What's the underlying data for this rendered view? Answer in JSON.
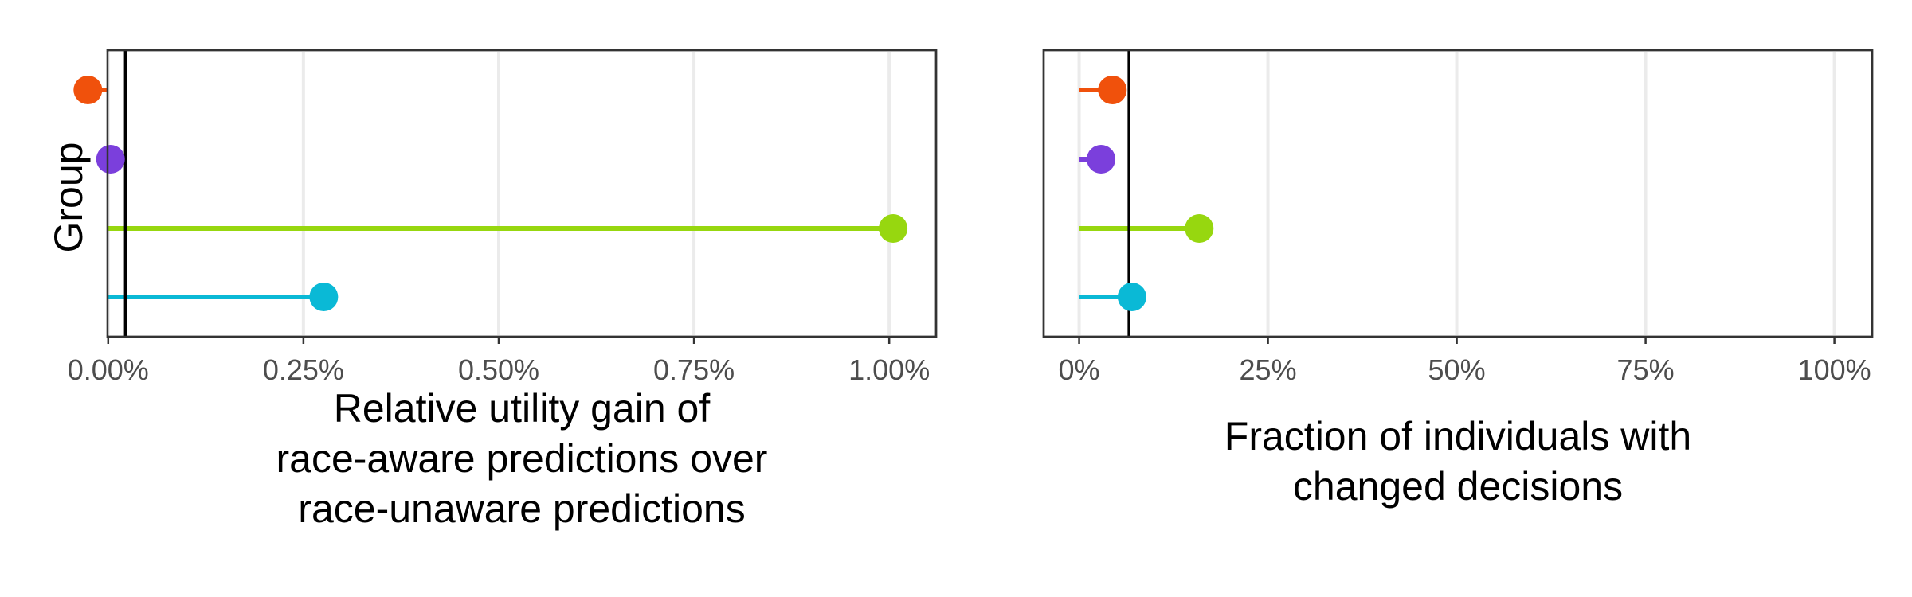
{
  "y_axis_label": "Group",
  "chart_data": [
    {
      "type": "lollipop",
      "xlabel": [
        "Relative utility gain of",
        "race-aware predictions over",
        "race-unaware predictions"
      ],
      "ylabel": "Group",
      "xlim": [
        -0.0008,
        1.06
      ],
      "xticks": [
        0,
        0.25,
        0.5,
        0.75,
        1.0
      ],
      "xtick_labels": [
        "0.00%",
        "0.25%",
        "0.50%",
        "0.75%",
        "1.00%"
      ],
      "reference_line": 0.022,
      "grid": "vertical",
      "series": [
        {
          "color": "#f0510c",
          "from": 0.0,
          "value": -0.026
        },
        {
          "color": "#7b3fdc",
          "from": 0.0,
          "value": 0.003
        },
        {
          "color": "#97d70f",
          "from": 0.0,
          "value": 1.005
        },
        {
          "color": "#0ab9d6",
          "from": 0.0,
          "value": 0.276
        }
      ]
    },
    {
      "type": "lollipop",
      "xlabel": [
        "Fraction of individuals with",
        "changed decisions"
      ],
      "ylabel": "",
      "xlim": [
        -0.047,
        1.05
      ],
      "xticks": [
        0,
        0.25,
        0.5,
        0.75,
        1.0
      ],
      "xtick_labels": [
        "0%",
        "25%",
        "50%",
        "75%",
        "100%"
      ],
      "reference_line": 0.066,
      "grid": "vertical",
      "series": [
        {
          "color": "#f0510c",
          "from": 0.0,
          "value": 0.044
        },
        {
          "color": "#7b3fdc",
          "from": 0.0,
          "value": 0.029
        },
        {
          "color": "#97d70f",
          "from": 0.0,
          "value": 0.159
        },
        {
          "color": "#0ab9d6",
          "from": 0.0,
          "value": 0.07
        }
      ]
    }
  ]
}
